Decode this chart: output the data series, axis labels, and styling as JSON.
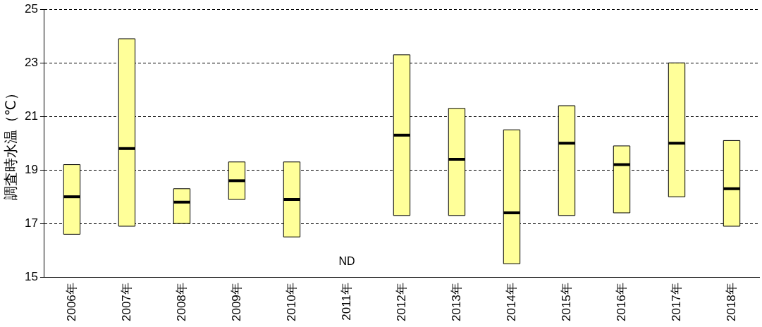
{
  "chart_data": {
    "type": "box",
    "ylabel": "調査時水温（℃）",
    "color": "#ffff99",
    "categories": [
      "2006年",
      "2007年",
      "2008年",
      "2009年",
      "2010年",
      "2011年",
      "2012年",
      "2013年",
      "2014年",
      "2015年",
      "2016年",
      "2017年",
      "2018年"
    ],
    "boxes": [
      {
        "low": 16.6,
        "q1": 16.6,
        "median": 18.0,
        "q3": 19.2,
        "high": 19.2
      },
      {
        "low": 16.9,
        "q1": 16.9,
        "median": 19.8,
        "q3": 23.9,
        "high": 23.9
      },
      {
        "low": 17.0,
        "q1": 17.0,
        "median": 17.8,
        "q3": 18.3,
        "high": 18.3
      },
      {
        "low": 17.9,
        "q1": 17.9,
        "median": 18.6,
        "q3": 19.3,
        "high": 19.3
      },
      {
        "low": 16.5,
        "q1": 16.5,
        "median": 17.9,
        "q3": 19.3,
        "high": 19.3
      },
      null,
      {
        "low": 17.3,
        "q1": 17.3,
        "median": 20.3,
        "q3": 23.3,
        "high": 23.3
      },
      {
        "low": 17.3,
        "q1": 17.3,
        "median": 19.4,
        "q3": 21.3,
        "high": 21.3
      },
      {
        "low": 15.5,
        "q1": 15.5,
        "median": 17.4,
        "q3": 20.5,
        "high": 20.5
      },
      {
        "low": 17.3,
        "q1": 17.3,
        "median": 20.0,
        "q3": 21.4,
        "high": 21.4
      },
      {
        "low": 17.4,
        "q1": 17.4,
        "median": 19.2,
        "q3": 19.9,
        "high": 19.9
      },
      {
        "low": 18.0,
        "q1": 18.0,
        "median": 20.0,
        "q3": 23.0,
        "high": 23.0
      },
      {
        "low": 16.9,
        "q1": 16.9,
        "median": 18.3,
        "q3": 20.1,
        "high": 20.1
      }
    ],
    "ylim": [
      15,
      25
    ],
    "yticks": [
      15,
      17,
      19,
      21,
      23,
      25
    ],
    "grid": "y",
    "annotations": [
      "ND"
    ]
  }
}
